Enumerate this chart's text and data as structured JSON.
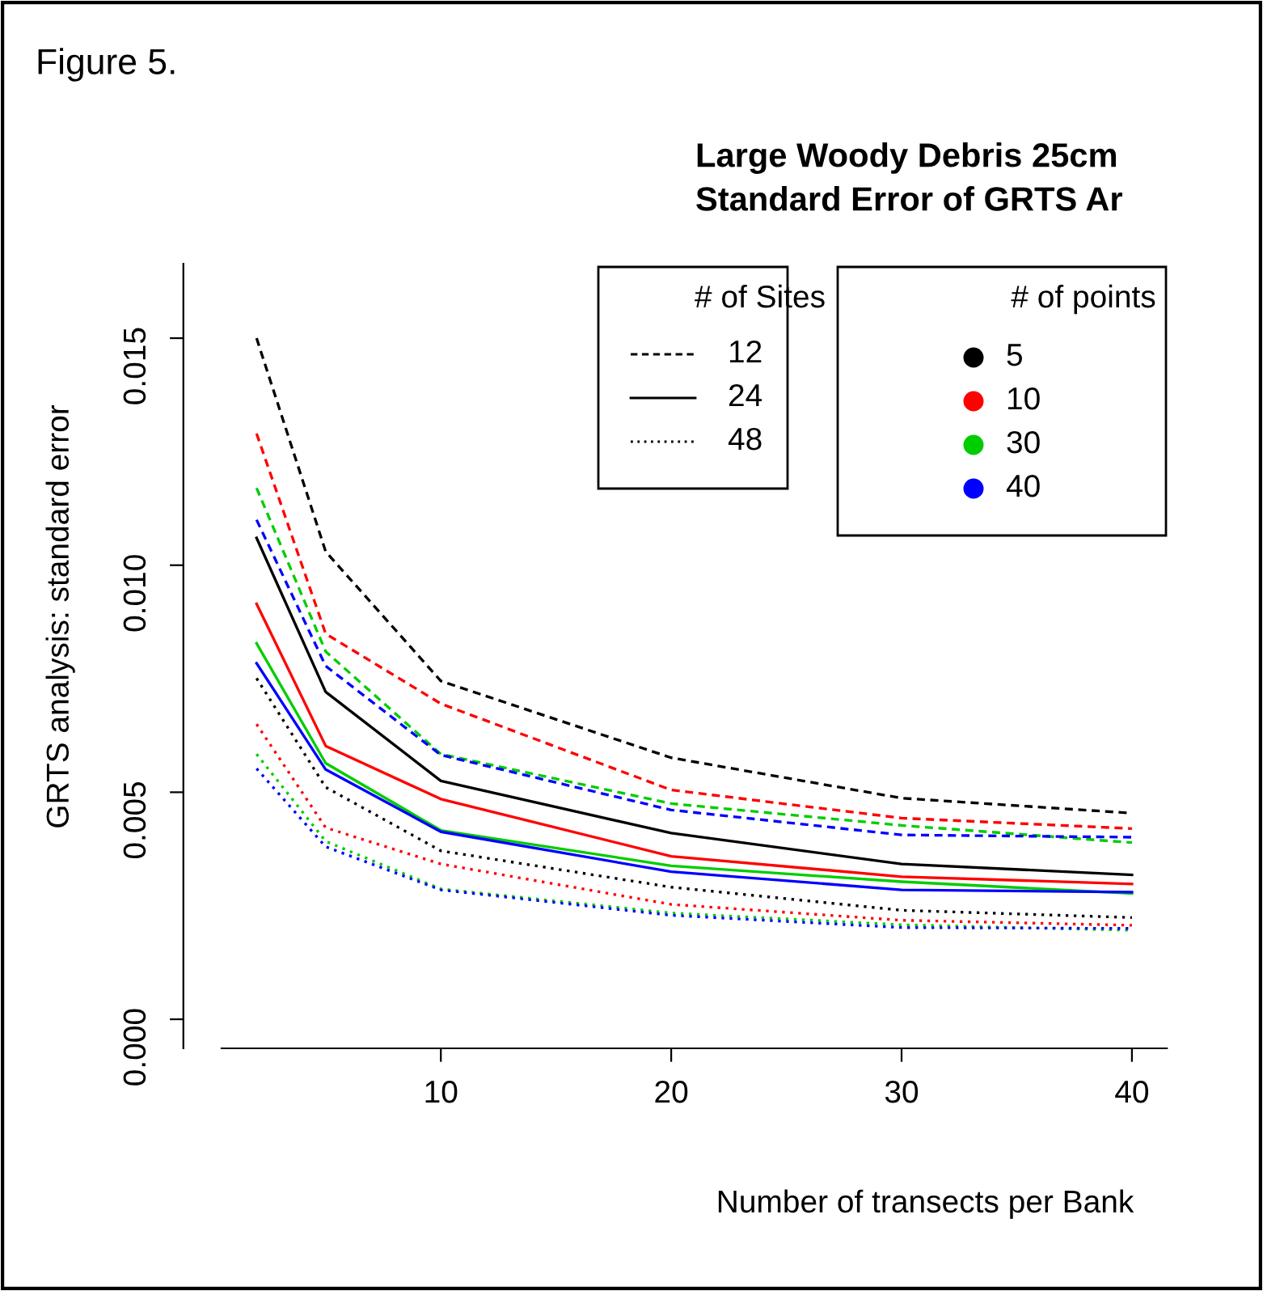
{
  "chart_data": {
    "type": "line",
    "title": "Large Woody Debris 25cm\nStandard Error of GRTS Ar",
    "xlabel": "Number of transects per Bank",
    "ylabel": "GRTS analysis: standard error",
    "annotations": [
      "Figure 5.",
      "# of Sites",
      "12",
      "24",
      "48",
      "# of points",
      "5",
      "10",
      "30",
      "40"
    ],
    "x": [
      2,
      5,
      10,
      20,
      30,
      40
    ],
    "xlim": [
      0.48,
      41.52
    ],
    "xticks": [
      10,
      20,
      30,
      40
    ],
    "ylim": [
      -0.00064,
      0.01664
    ],
    "yticks": [
      {
        "value": 0,
        "label": "0.000"
      },
      {
        "value": 0.005,
        "label": "0.005"
      },
      {
        "value": 0.01,
        "label": "0.010"
      },
      {
        "value": 0.015,
        "label": "0.015"
      }
    ],
    "grid": false,
    "series": [
      {
        "color": "#000000",
        "line_style": "dashed",
        "values": [
          0.015,
          0.0103,
          0.00745,
          0.00576,
          0.00487,
          0.00454
        ]
      },
      {
        "color": "#ff0000",
        "line_style": "dashed",
        "values": [
          0.0129,
          0.00849,
          0.00695,
          0.00505,
          0.00443,
          0.0042
        ]
      },
      {
        "color": "#00cd00",
        "line_style": "dashed",
        "values": [
          0.0117,
          0.0081,
          0.00584,
          0.00475,
          0.00427,
          0.00389
        ]
      },
      {
        "color": "#0000ff",
        "line_style": "dashed",
        "values": [
          0.011,
          0.00778,
          0.00582,
          0.00461,
          0.00406,
          0.00401
        ]
      },
      {
        "color": "#000000",
        "line_style": "solid",
        "values": [
          0.0106,
          0.00721,
          0.00525,
          0.0041,
          0.00342,
          0.00318
        ]
      },
      {
        "color": "#ff0000",
        "line_style": "solid",
        "values": [
          0.00915,
          0.00602,
          0.00485,
          0.00359,
          0.00314,
          0.00298
        ]
      },
      {
        "color": "#00cd00",
        "line_style": "solid",
        "values": [
          0.00828,
          0.00564,
          0.00416,
          0.00338,
          0.00303,
          0.00277
        ]
      },
      {
        "color": "#0000ff",
        "line_style": "solid",
        "values": [
          0.00784,
          0.0055,
          0.00413,
          0.00325,
          0.00285,
          0.0028
        ]
      },
      {
        "color": "#000000",
        "line_style": "dotted",
        "values": [
          0.00751,
          0.00511,
          0.00371,
          0.00291,
          0.0024,
          0.00224
        ]
      },
      {
        "color": "#ff0000",
        "line_style": "dotted",
        "values": [
          0.0065,
          0.00422,
          0.00342,
          0.00253,
          0.00218,
          0.00207
        ]
      },
      {
        "color": "#00cd00",
        "line_style": "dotted",
        "values": [
          0.00584,
          0.00392,
          0.00287,
          0.00234,
          0.00208,
          0.00196
        ]
      },
      {
        "color": "#0000ff",
        "line_style": "dotted",
        "values": [
          0.00552,
          0.0038,
          0.00285,
          0.00229,
          0.00202,
          0.002
        ]
      }
    ]
  }
}
